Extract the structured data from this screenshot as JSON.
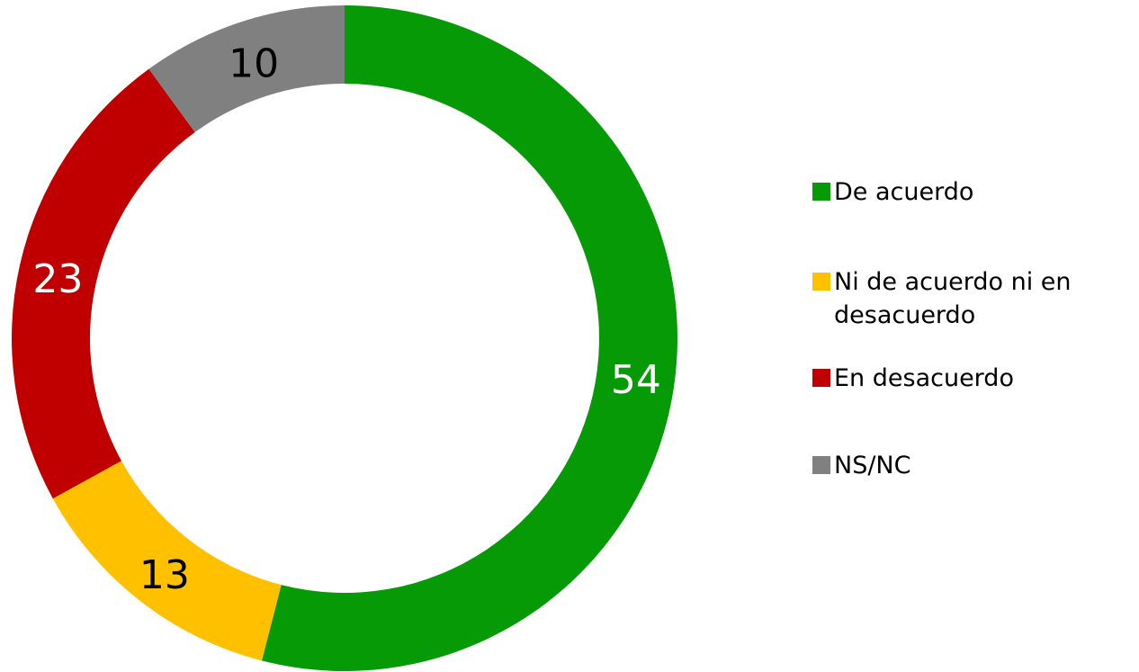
{
  "chart_data": {
    "type": "donut",
    "categories": [
      "De acuerdo",
      "Ni de acuerdo ni en desacuerdo",
      "En desacuerdo",
      "NS/NC"
    ],
    "values": [
      54,
      13,
      23,
      10
    ],
    "colors": [
      "#069a06",
      "#ffc000",
      "#c00000",
      "#808080"
    ],
    "label_colors": [
      "#ffffff",
      "#000000",
      "#ffffff",
      "#000000"
    ],
    "legend": "right"
  }
}
